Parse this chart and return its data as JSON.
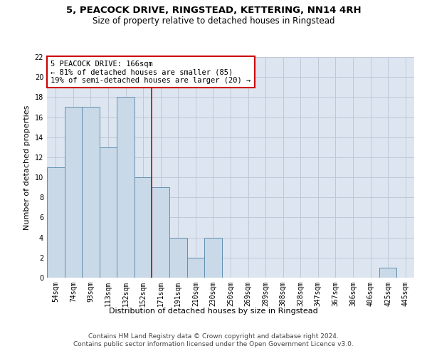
{
  "title1": "5, PEACOCK DRIVE, RINGSTEAD, KETTERING, NN14 4RH",
  "title2": "Size of property relative to detached houses in Ringstead",
  "xlabel": "Distribution of detached houses by size in Ringstead",
  "ylabel": "Number of detached properties",
  "categories": [
    "54sqm",
    "74sqm",
    "93sqm",
    "113sqm",
    "132sqm",
    "152sqm",
    "171sqm",
    "191sqm",
    "210sqm",
    "230sqm",
    "250sqm",
    "269sqm",
    "289sqm",
    "308sqm",
    "328sqm",
    "347sqm",
    "367sqm",
    "386sqm",
    "406sqm",
    "425sqm",
    "445sqm"
  ],
  "values": [
    11,
    17,
    17,
    13,
    18,
    10,
    9,
    4,
    2,
    4,
    0,
    0,
    0,
    0,
    0,
    0,
    0,
    0,
    0,
    1,
    0
  ],
  "bar_color": "#c9d9e8",
  "bar_edge_color": "#6090b0",
  "bar_linewidth": 0.7,
  "red_line_x": 5.5,
  "annotation_line1": "5 PEACOCK DRIVE: 166sqm",
  "annotation_line2": "← 81% of detached houses are smaller (85)",
  "annotation_line3": "19% of semi-detached houses are larger (20) →",
  "annotation_box_color": "#ffffff",
  "annotation_box_edge": "#cc0000",
  "red_line_color": "#cc0000",
  "ylim": [
    0,
    22
  ],
  "yticks": [
    0,
    2,
    4,
    6,
    8,
    10,
    12,
    14,
    16,
    18,
    20,
    22
  ],
  "grid_color": "#c0c8d8",
  "background_color": "#dde6f0",
  "footer1": "Contains HM Land Registry data © Crown copyright and database right 2024.",
  "footer2": "Contains public sector information licensed under the Open Government Licence v3.0.",
  "title_fontsize": 9.5,
  "subtitle_fontsize": 8.5,
  "axis_label_fontsize": 8,
  "tick_fontsize": 7,
  "annotation_fontsize": 7.5,
  "footer_fontsize": 6.5
}
